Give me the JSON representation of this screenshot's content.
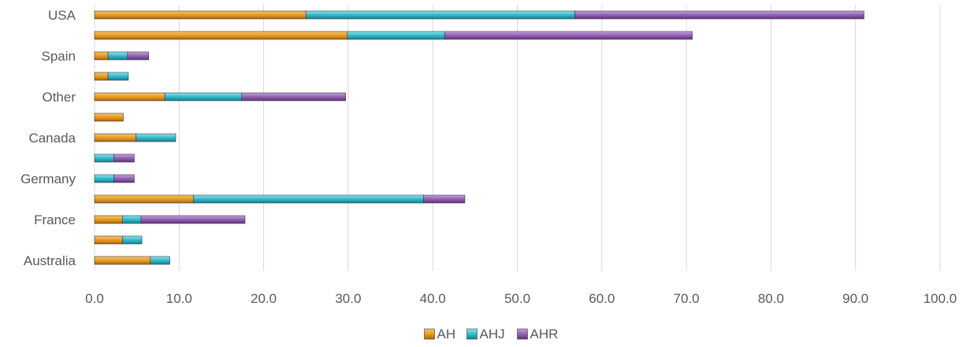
{
  "chart_data": {
    "type": "bar",
    "orientation": "horizontal",
    "stacked": true,
    "categories": [
      "USA",
      "",
      "Spain",
      "",
      "Other",
      "",
      "Canada",
      "",
      "Germany",
      "",
      "France",
      "",
      "Australia"
    ],
    "series": [
      {
        "name": "AH",
        "color": "#E8961E",
        "values": [
          25.0,
          29.9,
          1.6,
          1.6,
          8.3,
          3.4,
          4.9,
          0,
          0,
          11.7,
          3.3,
          3.3,
          6.6
        ]
      },
      {
        "name": "AHJ",
        "color": "#2CB5C8",
        "values": [
          31.8,
          11.5,
          2.3,
          2.4,
          9.1,
          0,
          4.7,
          2.3,
          2.3,
          27.2,
          2.2,
          2.3,
          2.3
        ]
      },
      {
        "name": "AHR",
        "color": "#8E5BAE",
        "values": [
          34.2,
          29.3,
          2.5,
          0,
          12.3,
          0,
          0,
          2.4,
          2.4,
          4.9,
          12.3,
          0,
          0
        ]
      }
    ],
    "x_ticks": [
      "0.0",
      "10.0",
      "20.0",
      "30.0",
      "40.0",
      "50.0",
      "60.0",
      "70.0",
      "80.0",
      "90.0",
      "100.0"
    ],
    "xlim": [
      0,
      100
    ],
    "grid": true,
    "legend_position": "bottom"
  }
}
